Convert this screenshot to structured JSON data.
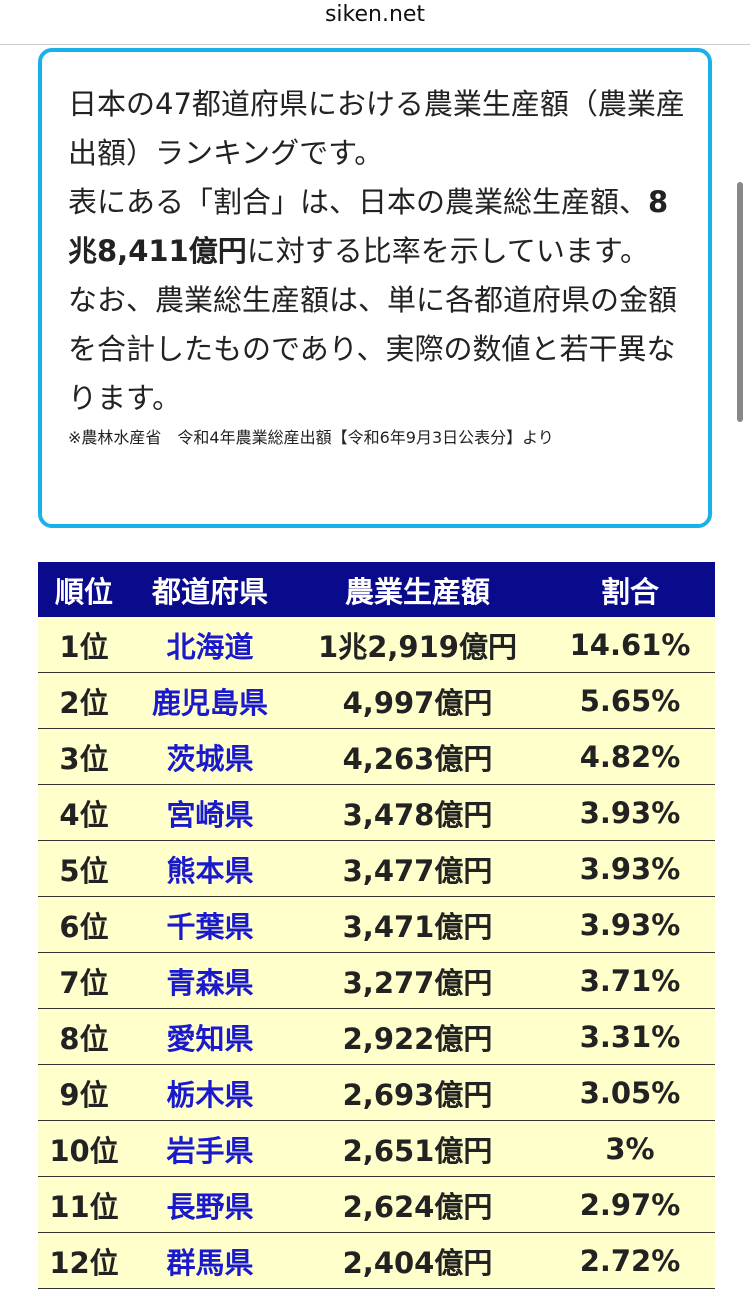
{
  "header": {
    "url": "siken.net"
  },
  "intro": {
    "paragraph1": "日本の47都道府県における農業生産額（農業産出額）ランキングです。",
    "paragraph2": [
      "表にある「割合」は、日本の農業総生産額、",
      "8兆8,411億円",
      "に対する比率を示しています。"
    ],
    "paragraph3": "なお、農業総生産額は、単に各都道府県の金額を合計したものであり、実際の数値と若干異なります。",
    "note": "※農林水産省　令和4年農業総産出額【令和6年9月3日公表分】より"
  },
  "table": {
    "headers": [
      "順位",
      "都道府県",
      "農業生産額",
      "割合"
    ],
    "rows": [
      [
        "1位",
        "北海道",
        "1兆2,919億円",
        "14.61%"
      ],
      [
        "2位",
        "鹿児島県",
        "4,997億円",
        "5.65%"
      ],
      [
        "3位",
        "茨城県",
        "4,263億円",
        "4.82%"
      ],
      [
        "4位",
        "宮崎県",
        "3,478億円",
        "3.93%"
      ],
      [
        "5位",
        "熊本県",
        "3,477億円",
        "3.93%"
      ],
      [
        "6位",
        "千葉県",
        "3,471億円",
        "3.93%"
      ],
      [
        "7位",
        "青森県",
        "3,277億円",
        "3.71%"
      ],
      [
        "8位",
        "愛知県",
        "2,922億円",
        "3.31%"
      ],
      [
        "9位",
        "栃木県",
        "2,693億円",
        "3.05%"
      ],
      [
        "10位",
        "岩手県",
        "2,651億円",
        "3%"
      ],
      [
        "11位",
        "長野県",
        "2,624億円",
        "2.97%"
      ],
      [
        "12位",
        "群馬県",
        "2,404億円",
        "2.72%"
      ]
    ]
  }
}
